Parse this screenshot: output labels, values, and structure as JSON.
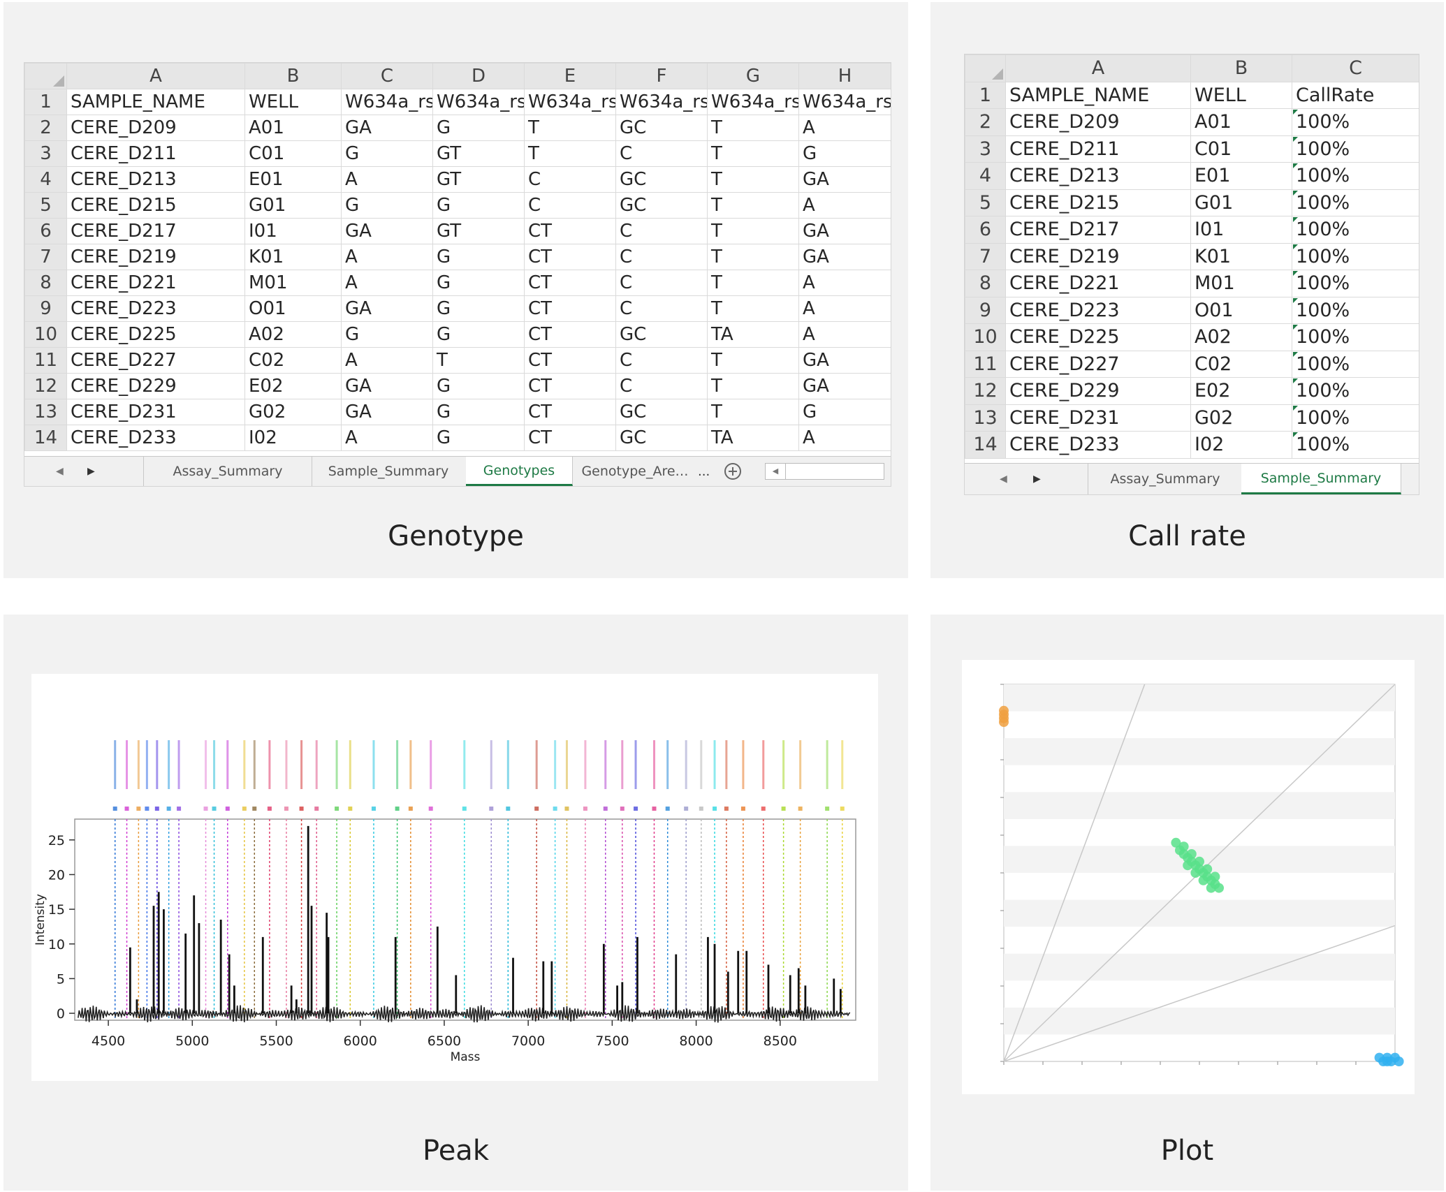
{
  "genotype": {
    "caption": "Genotype",
    "columns": [
      "A",
      "B",
      "C",
      "D",
      "E",
      "F",
      "G",
      "H"
    ],
    "rows": [
      [
        "1",
        "SAMPLE_NAME",
        "WELL",
        "W634a_rs",
        "W634a_rs",
        "W634a_rs",
        "W634a_rs",
        "W634a_rs",
        "W634a_rs"
      ],
      [
        "2",
        "CERE_D209",
        "A01",
        "GA",
        "G",
        "T",
        "GC",
        "T",
        "A"
      ],
      [
        "3",
        "CERE_D211",
        "C01",
        "G",
        "GT",
        "T",
        "C",
        "T",
        "G"
      ],
      [
        "4",
        "CERE_D213",
        "E01",
        "A",
        "GT",
        "C",
        "GC",
        "T",
        "GA"
      ],
      [
        "5",
        "CERE_D215",
        "G01",
        "G",
        "G",
        "C",
        "GC",
        "T",
        "A"
      ],
      [
        "6",
        "CERE_D217",
        "I01",
        "GA",
        "GT",
        "CT",
        "C",
        "T",
        "GA"
      ],
      [
        "7",
        "CERE_D219",
        "K01",
        "A",
        "G",
        "CT",
        "C",
        "T",
        "GA"
      ],
      [
        "8",
        "CERE_D221",
        "M01",
        "A",
        "G",
        "CT",
        "C",
        "T",
        "A"
      ],
      [
        "9",
        "CERE_D223",
        "O01",
        "GA",
        "G",
        "CT",
        "C",
        "T",
        "A"
      ],
      [
        "10",
        "CERE_D225",
        "A02",
        "G",
        "G",
        "CT",
        "GC",
        "TA",
        "A"
      ],
      [
        "11",
        "CERE_D227",
        "C02",
        "A",
        "T",
        "CT",
        "C",
        "T",
        "GA"
      ],
      [
        "12",
        "CERE_D229",
        "E02",
        "GA",
        "G",
        "CT",
        "C",
        "T",
        "GA"
      ],
      [
        "13",
        "CERE_D231",
        "G02",
        "GA",
        "G",
        "CT",
        "GC",
        "T",
        "G"
      ],
      [
        "14",
        "CERE_D233",
        "I02",
        "A",
        "G",
        "CT",
        "GC",
        "TA",
        "A"
      ]
    ],
    "tabs": [
      "Assay_Summary",
      "Sample_Summary",
      "Genotypes",
      "Genotype_Are…"
    ],
    "active_tab": "Genotypes",
    "ellipsis": "...",
    "add_icon": "plus-circle-icon"
  },
  "callrate": {
    "caption": "Call rate",
    "columns": [
      "A",
      "B",
      "C"
    ],
    "rows": [
      [
        "1",
        "SAMPLE_NAME",
        "WELL",
        "CallRate"
      ],
      [
        "2",
        "CERE_D209",
        "A01",
        "100%"
      ],
      [
        "3",
        "CERE_D211",
        "C01",
        "100%"
      ],
      [
        "4",
        "CERE_D213",
        "E01",
        "100%"
      ],
      [
        "5",
        "CERE_D215",
        "G01",
        "100%"
      ],
      [
        "6",
        "CERE_D217",
        "I01",
        "100%"
      ],
      [
        "7",
        "CERE_D219",
        "K01",
        "100%"
      ],
      [
        "8",
        "CERE_D221",
        "M01",
        "100%"
      ],
      [
        "9",
        "CERE_D223",
        "O01",
        "100%"
      ],
      [
        "10",
        "CERE_D225",
        "A02",
        "100%"
      ],
      [
        "11",
        "CERE_D227",
        "C02",
        "100%"
      ],
      [
        "12",
        "CERE_D229",
        "E02",
        "100%"
      ],
      [
        "13",
        "CERE_D231",
        "G02",
        "100%"
      ],
      [
        "14",
        "CERE_D233",
        "I02",
        "100%"
      ]
    ],
    "tabs": [
      "Assay_Summary",
      "Sample_Summary"
    ],
    "active_tab": "Sample_Summary"
  },
  "peak": {
    "caption": "Peak",
    "chart_data": {
      "type": "line",
      "xlabel": "Mass",
      "ylabel": "Intensity",
      "xlim": [
        4300,
        8950
      ],
      "ylim": [
        -1,
        28
      ],
      "x_ticks": [
        4500,
        5000,
        5500,
        6000,
        6500,
        7000,
        7500,
        8000,
        8500
      ],
      "y_ticks": [
        0,
        5,
        10,
        15,
        20,
        25
      ],
      "peaks": [
        {
          "x": 4630,
          "y": 9.5
        },
        {
          "x": 4670,
          "y": 2
        },
        {
          "x": 4770,
          "y": 15.5
        },
        {
          "x": 4800,
          "y": 17.5
        },
        {
          "x": 4830,
          "y": 15
        },
        {
          "x": 4960,
          "y": 11.5
        },
        {
          "x": 5010,
          "y": 17
        },
        {
          "x": 5040,
          "y": 13
        },
        {
          "x": 5170,
          "y": 13.5
        },
        {
          "x": 5220,
          "y": 8.5
        },
        {
          "x": 5250,
          "y": 4
        },
        {
          "x": 5420,
          "y": 11
        },
        {
          "x": 5590,
          "y": 4
        },
        {
          "x": 5620,
          "y": 2
        },
        {
          "x": 5690,
          "y": 27
        },
        {
          "x": 5710,
          "y": 15.5
        },
        {
          "x": 5800,
          "y": 14.5
        },
        {
          "x": 5810,
          "y": 11
        },
        {
          "x": 6210,
          "y": 11
        },
        {
          "x": 6460,
          "y": 12.5
        },
        {
          "x": 6570,
          "y": 5.5
        },
        {
          "x": 6910,
          "y": 8
        },
        {
          "x": 7090,
          "y": 7.5
        },
        {
          "x": 7140,
          "y": 7.5
        },
        {
          "x": 7450,
          "y": 10
        },
        {
          "x": 7530,
          "y": 4
        },
        {
          "x": 7560,
          "y": 4.5
        },
        {
          "x": 7650,
          "y": 11
        },
        {
          "x": 7880,
          "y": 8.5
        },
        {
          "x": 8070,
          "y": 11
        },
        {
          "x": 8110,
          "y": 10
        },
        {
          "x": 8190,
          "y": 6
        },
        {
          "x": 8250,
          "y": 9
        },
        {
          "x": 8300,
          "y": 9
        },
        {
          "x": 8430,
          "y": 7
        },
        {
          "x": 8560,
          "y": 5.5
        },
        {
          "x": 8610,
          "y": 6.5
        },
        {
          "x": 8650,
          "y": 4
        },
        {
          "x": 8820,
          "y": 5
        },
        {
          "x": 8860,
          "y": 3.5
        }
      ],
      "marker_lines": [
        {
          "x": 4540,
          "color": "#2b73d6"
        },
        {
          "x": 4610,
          "color": "#d13bd0"
        },
        {
          "x": 4680,
          "color": "#e89a3c"
        },
        {
          "x": 4730,
          "color": "#3a6fe8"
        },
        {
          "x": 4790,
          "color": "#5a3ee0"
        },
        {
          "x": 4860,
          "color": "#2a9be0"
        },
        {
          "x": 4920,
          "color": "#8b4ce0"
        },
        {
          "x": 5080,
          "color": "#e58ad8"
        },
        {
          "x": 5130,
          "color": "#2fbfd8"
        },
        {
          "x": 5210,
          "color": "#c43ad6"
        },
        {
          "x": 5310,
          "color": "#e6c23a"
        },
        {
          "x": 5370,
          "color": "#8a6a3a"
        },
        {
          "x": 5460,
          "color": "#e03b6a"
        },
        {
          "x": 5560,
          "color": "#e87aa0"
        },
        {
          "x": 5650,
          "color": "#d43b3b"
        },
        {
          "x": 5740,
          "color": "#e05a8a"
        },
        {
          "x": 5860,
          "color": "#5fcf5a"
        },
        {
          "x": 5940,
          "color": "#d9c62a"
        },
        {
          "x": 6080,
          "color": "#2fc7e0"
        },
        {
          "x": 6220,
          "color": "#3ac46a"
        },
        {
          "x": 6300,
          "color": "#e38a2a"
        },
        {
          "x": 6420,
          "color": "#d84cd0"
        },
        {
          "x": 6620,
          "color": "#3adbe0"
        },
        {
          "x": 6780,
          "color": "#9a8ad0"
        },
        {
          "x": 6880,
          "color": "#27b8d8"
        },
        {
          "x": 7050,
          "color": "#c24a3a"
        },
        {
          "x": 7160,
          "color": "#4ad2e8"
        },
        {
          "x": 7230,
          "color": "#d8b43a"
        },
        {
          "x": 7340,
          "color": "#e87ab0"
        },
        {
          "x": 7460,
          "color": "#b24ad0"
        },
        {
          "x": 7560,
          "color": "#d84caa"
        },
        {
          "x": 7640,
          "color": "#4a4adb"
        },
        {
          "x": 7750,
          "color": "#e03b8a"
        },
        {
          "x": 7830,
          "color": "#2a8ad8"
        },
        {
          "x": 7940,
          "color": "#9a9aca"
        },
        {
          "x": 8030,
          "color": "#bababa"
        },
        {
          "x": 8110,
          "color": "#2fd8e0"
        },
        {
          "x": 8180,
          "color": "#d45a3a"
        },
        {
          "x": 8280,
          "color": "#e87a2a"
        },
        {
          "x": 8400,
          "color": "#e84a4a"
        },
        {
          "x": 8520,
          "color": "#a8d82a"
        },
        {
          "x": 8620,
          "color": "#e8a03a"
        },
        {
          "x": 8780,
          "color": "#8ad84a"
        },
        {
          "x": 8870,
          "color": "#e8d23a"
        }
      ]
    }
  },
  "plot": {
    "caption": "Plot",
    "chart_data": {
      "type": "scatter",
      "xlim": [
        0,
        1.0
      ],
      "ylim": [
        0,
        1.0
      ],
      "grid": true,
      "clusters": [
        {
          "name": "orange",
          "color": "#f0a040",
          "points": [
            [
              0.0,
              0.92
            ],
            [
              0.0,
              0.9
            ],
            [
              0.0,
              0.93
            ],
            [
              0.0,
              0.91
            ]
          ]
        },
        {
          "name": "green",
          "color": "#58e08a",
          "points": [
            [
              0.44,
              0.58
            ],
            [
              0.45,
              0.56
            ],
            [
              0.46,
              0.55
            ],
            [
              0.47,
              0.54
            ],
            [
              0.48,
              0.53
            ],
            [
              0.49,
              0.52
            ],
            [
              0.5,
              0.51
            ],
            [
              0.51,
              0.5
            ],
            [
              0.52,
              0.49
            ],
            [
              0.53,
              0.48
            ],
            [
              0.54,
              0.47
            ],
            [
              0.55,
              0.46
            ],
            [
              0.46,
              0.57
            ],
            [
              0.48,
              0.55
            ],
            [
              0.5,
              0.53
            ],
            [
              0.52,
              0.51
            ],
            [
              0.54,
              0.49
            ],
            [
              0.47,
              0.52
            ],
            [
              0.49,
              0.5
            ],
            [
              0.51,
              0.48
            ],
            [
              0.53,
              0.46
            ]
          ]
        },
        {
          "name": "blue",
          "color": "#30b0f0",
          "points": [
            [
              0.97,
              0.0
            ],
            [
              0.98,
              0.01
            ],
            [
              0.99,
              0.0
            ],
            [
              1.0,
              0.01
            ],
            [
              0.96,
              0.01
            ],
            [
              0.98,
              0.0
            ],
            [
              1.01,
              0.0
            ]
          ]
        }
      ],
      "ref_lines": [
        [
          0.36,
          1.0
        ],
        [
          1.0,
          1.0
        ],
        [
          1.0,
          0.36
        ]
      ]
    }
  }
}
